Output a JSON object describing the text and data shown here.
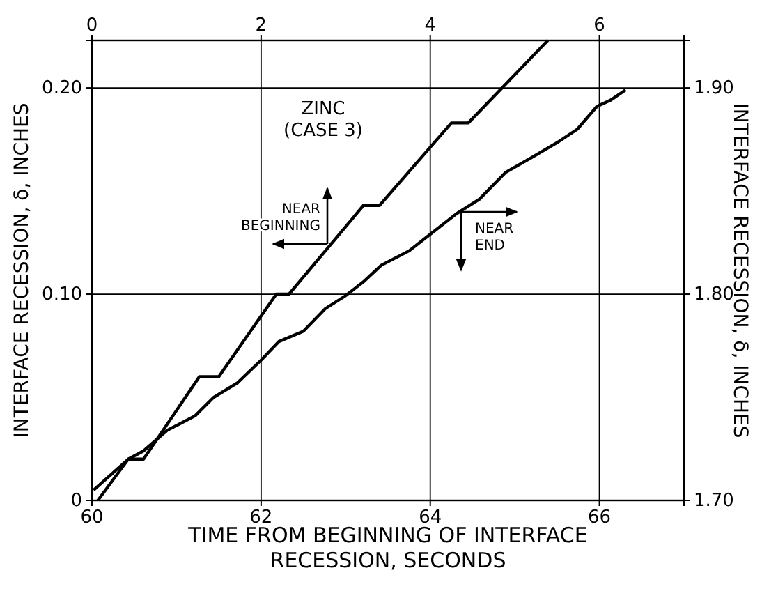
{
  "chart_data": {
    "type": "line",
    "title": "ZINC\n(CASE 3)",
    "xlabel": "TIME FROM BEGINNING OF INTERFACE\nRECESSION, SECONDS",
    "ylabel": "INTERFACE RECESSION, δ, INCHES",
    "y2label": "INTERFACE RECESSION, δ, INCHES",
    "xlim": [
      60,
      67
    ],
    "xticks": [
      60,
      62,
      64,
      66
    ],
    "x2lim": [
      0,
      7
    ],
    "x2ticks": [
      0,
      2,
      4,
      6
    ],
    "ylim": [
      0,
      0.223
    ],
    "yticks": [
      0,
      {
        "value": 0.1,
        "label": "0.10"
      },
      {
        "value": 0.2,
        "label": "0.20"
      }
    ],
    "y2lim": [
      1.7,
      1.923
    ],
    "y2ticks": [
      {
        "value": 1.7,
        "label": "1.70"
      },
      {
        "value": 1.8,
        "label": "1.80"
      },
      {
        "value": 1.9,
        "label": "1.90"
      }
    ],
    "grid": true,
    "legend": "center",
    "marker": "none",
    "line_style": "solid",
    "series": [
      {
        "name": "NEAR BEGINNING",
        "color": "#000000",
        "axis": "x2",
        "x": [
          0.07,
          0.43,
          0.61,
          1.27,
          1.5,
          2.18,
          2.33,
          3.21,
          3.4,
          4.25,
          4.45,
          5.39
        ],
        "values": [
          0,
          0.02,
          0.02,
          0.06,
          0.06,
          0.1,
          0.1,
          0.143,
          0.143,
          0.183,
          0.183,
          0.223
        ]
      },
      {
        "name": "NEAR END",
        "color": "#000000",
        "axis": "y2",
        "x": [
          60.02,
          60.43,
          60.61,
          60.89,
          61.22,
          61.44,
          61.72,
          62.0,
          62.21,
          62.5,
          62.76,
          62.99,
          63.21,
          63.42,
          63.75,
          64.03,
          64.31,
          64.58,
          64.89,
          65.19,
          65.52,
          65.74,
          65.97,
          66.13,
          66.31
        ],
        "values": [
          1.705,
          1.72,
          1.724,
          1.734,
          1.741,
          1.75,
          1.757,
          1.768,
          1.777,
          1.782,
          1.793,
          1.799,
          1.806,
          1.814,
          1.821,
          1.83,
          1.839,
          1.846,
          1.859,
          1.866,
          1.874,
          1.88,
          1.891,
          1.894,
          1.899
        ]
      }
    ]
  }
}
